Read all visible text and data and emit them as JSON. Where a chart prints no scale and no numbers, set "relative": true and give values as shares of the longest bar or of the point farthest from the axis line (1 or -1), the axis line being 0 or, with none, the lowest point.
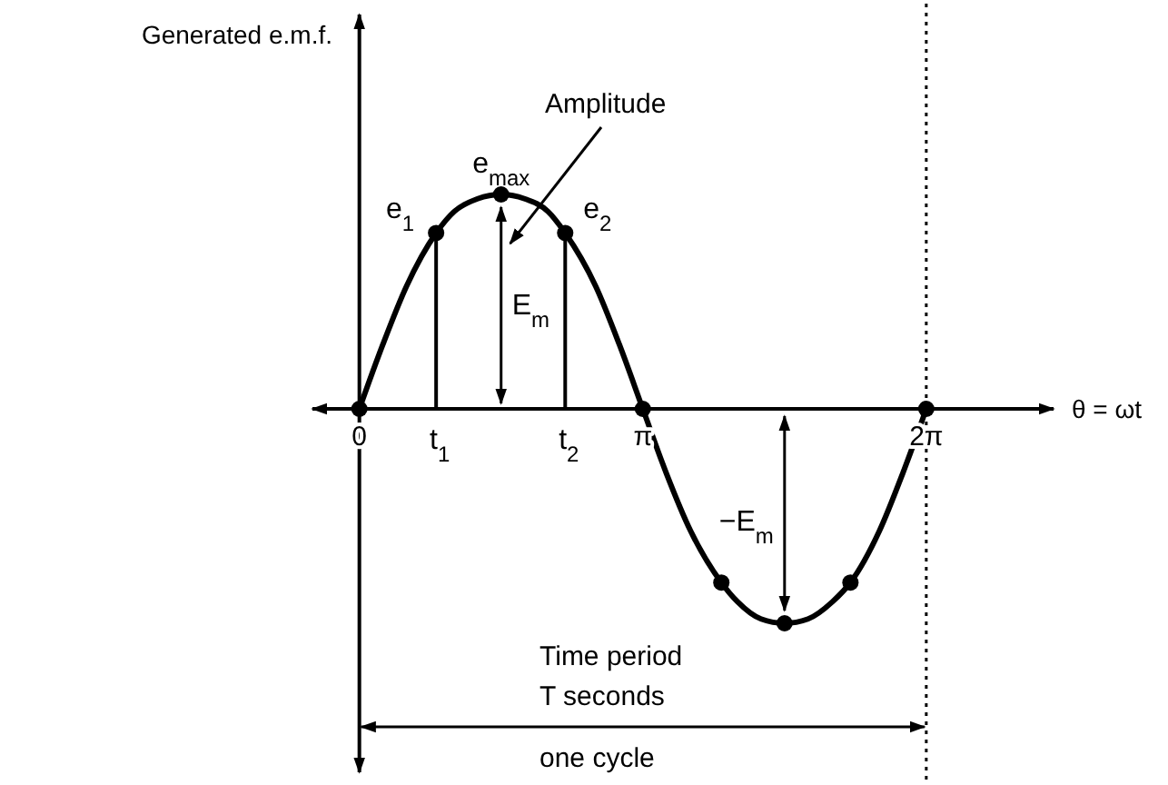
{
  "chart_data": {
    "type": "line",
    "relative": true,
    "xlabel": "θ = ωt",
    "xlim": [
      -0.52,
      7.69
    ],
    "xticks": [
      {
        "value": 0,
        "label": "0"
      },
      {
        "value": 3.14,
        "label": "π"
      },
      {
        "value": 6.28,
        "label": "2π"
      }
    ],
    "grid": false,
    "series": [
      {
        "color": "#000000",
        "line_style": "solid",
        "x": [
          0,
          0.26,
          0.52,
          0.85,
          1.05,
          1.31,
          1.57,
          1.83,
          2.09,
          2.28,
          2.62,
          2.88,
          3.14,
          3.4,
          3.67,
          4.01,
          4.19,
          4.45,
          4.71,
          4.97,
          5.24,
          5.44,
          5.76,
          6.02,
          6.28
        ],
        "values": [
          0,
          0.3,
          0.57,
          0.82,
          0.92,
          0.98,
          1,
          0.98,
          0.92,
          0.82,
          0.57,
          0.3,
          0,
          -0.3,
          -0.57,
          -0.81,
          -0.9,
          -0.98,
          -1,
          -0.98,
          -0.9,
          -0.81,
          -0.57,
          -0.3,
          0
        ]
      },
      {
        "type": "scatter",
        "color": "#000000",
        "marker": "circle",
        "x": [
          0,
          0.85,
          1.57,
          2.28,
          3.14,
          4.01,
          4.71,
          5.44,
          6.28
        ],
        "values": [
          0,
          0.82,
          1,
          0.82,
          0,
          -0.81,
          -1,
          -0.81,
          0
        ]
      },
      {
        "type": "line",
        "color": "#000000",
        "line_style": "solid",
        "x": [
          0.85,
          0.85
        ],
        "values": [
          0,
          0.82
        ]
      },
      {
        "type": "line",
        "color": "#000000",
        "line_style": "solid",
        "x": [
          2.28,
          2.28
        ],
        "values": [
          0,
          0.82
        ]
      }
    ],
    "ref_lines": [
      {
        "axis": "x",
        "value": 6.28,
        "line_style": "dotted",
        "color": "#000000"
      }
    ],
    "annotations": [
      {
        "text": "e$_{1}$",
        "x": 0.85,
        "y": 0.82
      },
      {
        "text": "e$_{max}$",
        "x": 1.57,
        "y": 1
      },
      {
        "text": "e$_{2}$",
        "x": 2.28,
        "y": 0.82
      },
      {
        "text": "t$_{1}$",
        "x": 0.85,
        "y": 0
      },
      {
        "text": "t$_{2}$",
        "x": 2.28,
        "y": 0
      },
      "Generated  e.m.f.",
      "Amplitude",
      "E$_{m}$",
      "−E$_{m}$",
      "Time period",
      "T seconds",
      "one cycle"
    ]
  }
}
